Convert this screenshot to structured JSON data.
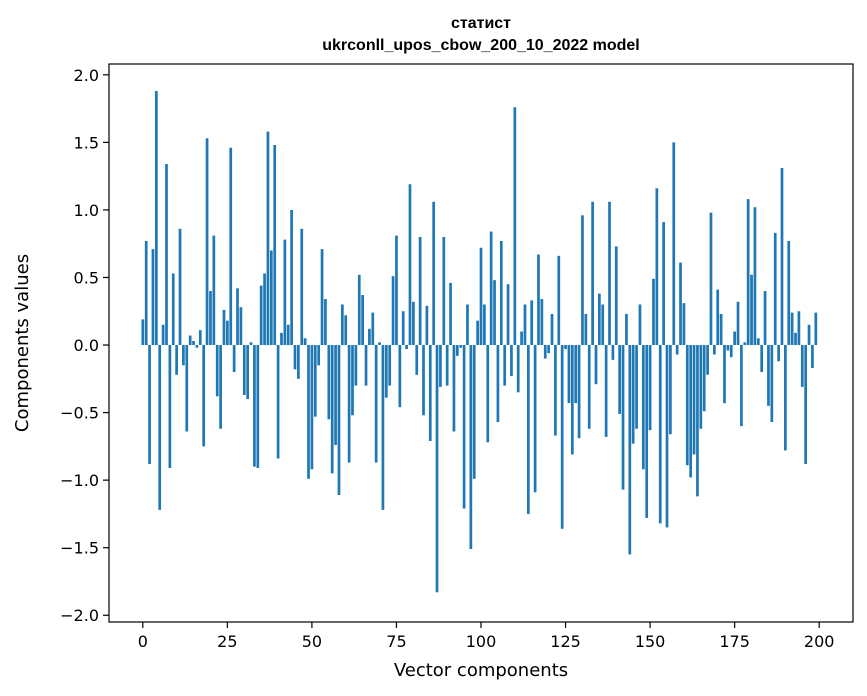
{
  "chart_data": {
    "type": "bar",
    "title": "статист",
    "subtitle": "ukrconll_upos_cbow_200_10_2022 model",
    "xlabel": "Vector components",
    "ylabel": "Components values",
    "xlim": [
      -10,
      210
    ],
    "ylim": [
      -2.05,
      2.08
    ],
    "xticks": [
      0,
      25,
      50,
      75,
      100,
      125,
      150,
      175,
      200
    ],
    "yticks": [
      -2.0,
      -1.5,
      -1.0,
      -0.5,
      0.0,
      0.5,
      1.0,
      1.5,
      2.0
    ],
    "ytick_labels": [
      "−2.0",
      "−1.5",
      "−1.0",
      "−0.5",
      "0.0",
      "0.5",
      "1.0",
      "1.5",
      "2.0"
    ],
    "bar_color": "#1f77b4",
    "grid": false,
    "legend": "none",
    "values": [
      0.19,
      0.77,
      -0.88,
      0.71,
      1.88,
      -1.22,
      0.15,
      1.34,
      -0.91,
      0.53,
      -0.22,
      0.86,
      -0.15,
      -0.64,
      0.07,
      0.03,
      -0.02,
      0.11,
      -0.75,
      1.53,
      0.4,
      0.81,
      -0.38,
      -0.62,
      0.26,
      0.18,
      1.46,
      -0.2,
      0.42,
      0.28,
      -0.37,
      -0.4,
      0.02,
      -0.9,
      -0.91,
      0.44,
      0.53,
      1.58,
      0.7,
      1.48,
      -0.84,
      0.09,
      0.78,
      0.15,
      1.0,
      -0.18,
      -0.25,
      0.86,
      0.05,
      -0.99,
      -0.92,
      -0.53,
      -0.15,
      0.71,
      0.34,
      -0.55,
      -0.95,
      -0.74,
      -1.11,
      0.3,
      0.22,
      -0.87,
      -0.52,
      -0.3,
      0.52,
      0.37,
      -0.3,
      0.12,
      0.24,
      -0.87,
      0.02,
      -1.22,
      -0.39,
      -0.3,
      0.51,
      0.81,
      -0.46,
      0.25,
      -0.03,
      1.19,
      0.32,
      -0.22,
      0.8,
      -0.52,
      0.29,
      -0.71,
      1.06,
      -1.83,
      -0.31,
      0.8,
      -0.3,
      0.46,
      -0.64,
      -0.08,
      -0.02,
      -1.21,
      0.3,
      -1.51,
      -0.99,
      0.18,
      0.72,
      0.3,
      -0.72,
      0.84,
      0.48,
      -0.57,
      0.77,
      -0.3,
      0.45,
      -0.23,
      1.76,
      -0.35,
      0.1,
      0.3,
      -1.25,
      0.33,
      -1.09,
      0.67,
      0.34,
      -0.1,
      -0.06,
      0.23,
      -0.67,
      0.66,
      -1.36,
      -0.03,
      -0.43,
      -0.81,
      -0.43,
      -0.69,
      0.96,
      0.23,
      -0.62,
      1.06,
      -0.29,
      0.38,
      0.3,
      -0.68,
      1.06,
      -0.11,
      0.73,
      -0.51,
      -1.07,
      0.23,
      -1.55,
      -0.73,
      -0.62,
      0.3,
      -0.92,
      -1.28,
      -0.63,
      0.49,
      1.16,
      -1.32,
      0.91,
      -1.35,
      -0.66,
      1.5,
      -0.07,
      0.61,
      0.31,
      -0.89,
      -0.98,
      -0.81,
      -1.12,
      -0.62,
      -0.49,
      -0.22,
      0.98,
      -0.07,
      0.41,
      0.23,
      -0.43,
      -0.04,
      -0.09,
      0.1,
      0.32,
      -0.6,
      0.02,
      1.08,
      0.52,
      1.02,
      0.05,
      -0.2,
      0.4,
      -0.45,
      -0.57,
      0.83,
      -0.12,
      1.31,
      -0.78,
      0.77,
      0.24,
      0.09,
      0.25,
      -0.31,
      -0.88,
      0.15,
      -0.17,
      0.24
    ]
  }
}
